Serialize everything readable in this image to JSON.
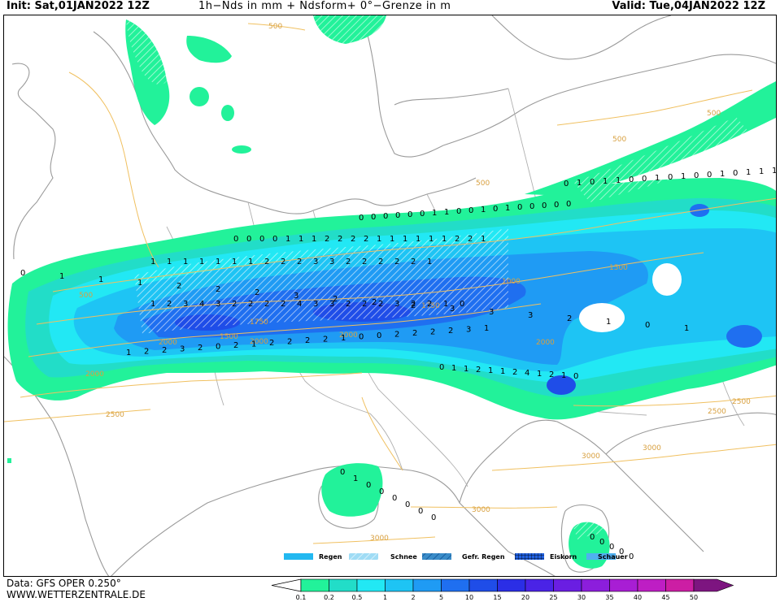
{
  "header": {
    "init": "Init: Sat,01JAN2022 12Z",
    "title": "1h−Nds in mm + Ndsform+ 0°−Grenze in m",
    "valid": "Valid: Tue,04JAN2022 12Z"
  },
  "footer": {
    "data_source": "Data: GFS OPER 0.250°",
    "website": "WWW.WETTERZENTRALE.DE"
  },
  "legend": {
    "items": [
      {
        "label": "Regen",
        "pattern": "solid",
        "color": "#22b8f0"
      },
      {
        "label": "Schnee",
        "pattern": "diag-light",
        "color": "#9fdcf5"
      },
      {
        "label": "Gefr. Regen",
        "pattern": "diag-dark",
        "color": "#3a8cc8"
      },
      {
        "label": "Eiskorn",
        "pattern": "grid",
        "color": "#1a4fd0"
      },
      {
        "label": "Schauer",
        "pattern": "dots",
        "color": "#50b0f0"
      }
    ]
  },
  "colorscale": {
    "values": [
      "0.1",
      "0.2",
      "0.5",
      "1",
      "2",
      "5",
      "10",
      "15",
      "20",
      "25",
      "30",
      "35",
      "40",
      "45",
      "50"
    ],
    "colors": [
      "#22f29a",
      "#22ddc8",
      "#22e8f4",
      "#1ec4f4",
      "#1f9bf4",
      "#1f6ff0",
      "#1f4de8",
      "#2b2ee6",
      "#4a23e6",
      "#6a1ee2",
      "#8c1edc",
      "#a81ed4",
      "#be1ec4",
      "#cc1ea4",
      "#7d1580"
    ]
  },
  "contours": {
    "freezing_level_labels": [
      "500",
      "500",
      "500",
      "500",
      "500",
      "1000",
      "1500",
      "1500",
      "1750",
      "1750",
      "2000",
      "2000",
      "2000",
      "2000",
      "2000",
      "2500",
      "2500",
      "2500",
      "3000",
      "3000",
      "3000",
      "3000"
    ]
  },
  "precip_values": {
    "north_row": [
      "0",
      "0",
      "0",
      "0",
      "0",
      "0",
      "1",
      "1",
      "0",
      "0",
      "1",
      "0",
      "1",
      "0",
      "0",
      "0",
      "0",
      "0"
    ],
    "mid_row_a": [
      "0",
      "0",
      "0",
      "0",
      "1",
      "1",
      "1",
      "2",
      "2",
      "2",
      "2",
      "1",
      "1",
      "1",
      "1",
      "1",
      "1",
      "2",
      "2",
      "1"
    ],
    "mid_row_b": [
      "1",
      "1",
      "1",
      "1",
      "1",
      "1",
      "1",
      "2",
      "2",
      "2",
      "3",
      "3",
      "2",
      "2",
      "2",
      "2",
      "2",
      "1"
    ],
    "core_row": [
      "0",
      "1",
      "1",
      "1",
      "2",
      "2",
      "2",
      "3",
      "2",
      "2",
      "2",
      "3",
      "3",
      "3",
      "2",
      "1",
      "0",
      "1"
    ],
    "core_row_b": [
      "1",
      "2",
      "3",
      "4",
      "3",
      "2",
      "2",
      "2",
      "2",
      "4",
      "3",
      "3",
      "2",
      "2",
      "2",
      "3",
      "2",
      "2",
      "1",
      "0"
    ],
    "south_row": [
      "1",
      "2",
      "2",
      "3",
      "2",
      "0",
      "2",
      "1",
      "2",
      "2",
      "2",
      "2",
      "1",
      "0",
      "0",
      "2",
      "2",
      "2",
      "2",
      "3",
      "1"
    ],
    "south_row_b": [
      "0",
      "1",
      "1",
      "2",
      "1",
      "1",
      "2",
      "4",
      "1",
      "2",
      "1",
      "0"
    ],
    "east_cluster": [
      "0",
      "1",
      "0",
      "1",
      "1",
      "0",
      "0",
      "1",
      "0",
      "1",
      "0",
      "0",
      "1",
      "0",
      "1",
      "1",
      "1"
    ],
    "corsica": [
      "0",
      "1",
      "0",
      "0",
      "0",
      "0",
      "0",
      "0"
    ],
    "calabria": [
      "0",
      "0",
      "0",
      "0",
      "0"
    ]
  }
}
